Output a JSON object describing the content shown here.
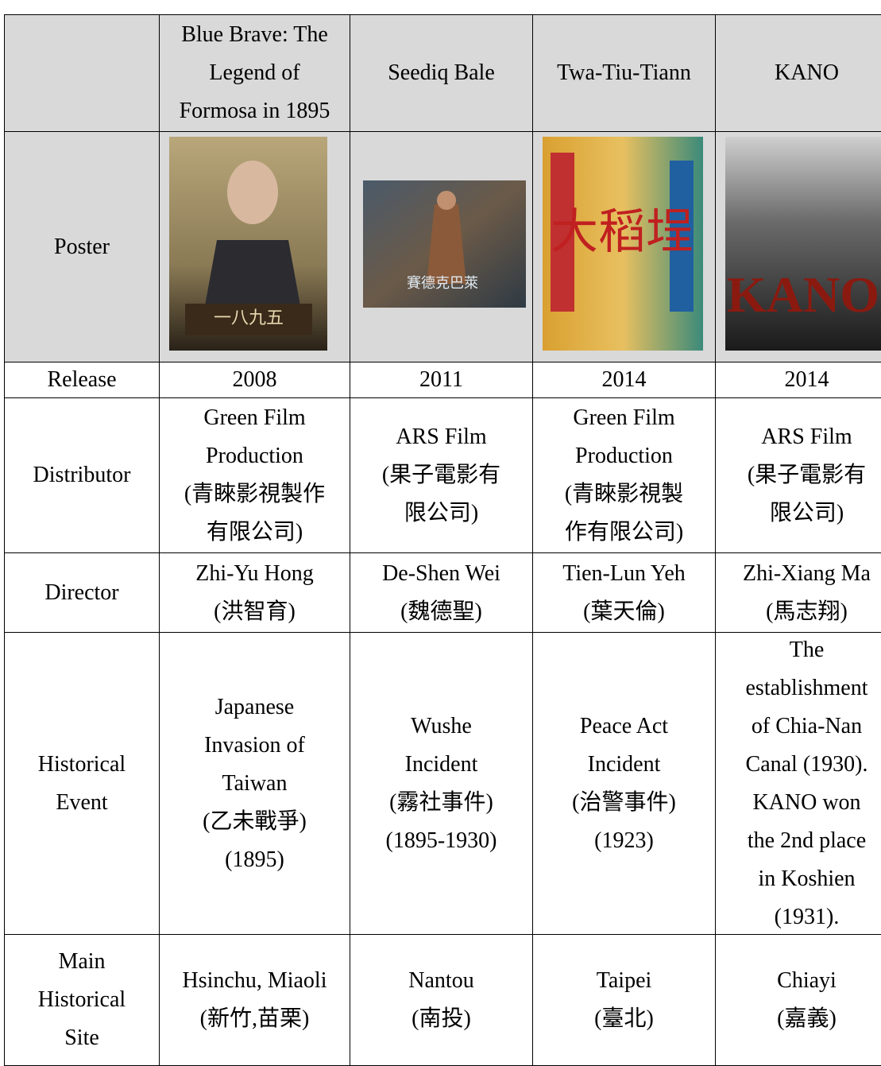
{
  "table": {
    "columns": [
      [
        "Blue Brave: The",
        "Legend of",
        "Formosa in 1895"
      ],
      [
        "Seediq Bale"
      ],
      [
        "Twa-Tiu-Tiann"
      ],
      [
        "KANO"
      ]
    ],
    "poster_label": [
      "Poster"
    ],
    "rows": [
      {
        "label": [
          "Release"
        ],
        "cells": [
          [
            "2008"
          ],
          [
            "2011"
          ],
          [
            "2014"
          ],
          [
            "2014"
          ]
        ]
      },
      {
        "label": [
          "Distributor"
        ],
        "cells": [
          [
            "Green Film",
            "Production",
            "(青睞影視製作",
            "有限公司)"
          ],
          [
            "ARS Film",
            "(果子電影有",
            "限公司)"
          ],
          [
            "Green Film",
            "Production",
            "(青睞影視製",
            "作有限公司)"
          ],
          [
            "ARS Film",
            "(果子電影有",
            "限公司)"
          ]
        ]
      },
      {
        "label": [
          "Director"
        ],
        "cells": [
          [
            "Zhi-Yu Hong",
            "(洪智育)"
          ],
          [
            "De-Shen Wei",
            "(魏德聖)"
          ],
          [
            "Tien-Lun Yeh",
            "(葉天倫)"
          ],
          [
            "Zhi-Xiang Ma",
            "(馬志翔)"
          ]
        ]
      },
      {
        "label": [
          "Historical",
          "Event"
        ],
        "cells": [
          [
            "Japanese",
            "Invasion of",
            "Taiwan",
            "(乙未戰爭)",
            "(1895)"
          ],
          [
            "Wushe",
            "Incident",
            "(霧社事件)",
            "(1895-1930)"
          ],
          [
            "Peace Act",
            "Incident",
            "(治警事件)",
            "(1923)"
          ],
          [
            "The",
            "establishment",
            "of Chia-Nan",
            "Canal (1930).",
            "KANO won",
            "the 2nd place",
            "in Koshien",
            "(1931)."
          ]
        ]
      },
      {
        "label": [
          "Main",
          "Historical",
          "Site"
        ],
        "cells": [
          [
            "Hsinchu, Miaoli",
            "(新竹,苗栗)"
          ],
          [
            "Nantou",
            "(南投)"
          ],
          [
            "Taipei",
            "(臺北)"
          ],
          [
            "Chiayi",
            "(嘉義)"
          ]
        ]
      }
    ]
  }
}
